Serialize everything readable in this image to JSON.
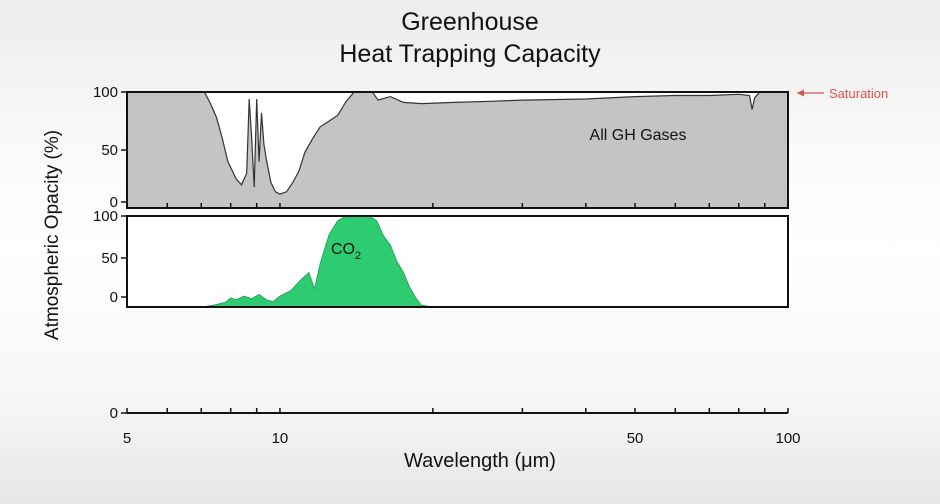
{
  "title_line1": "Greenhouse",
  "title_line2": "Heat Trapping Capacity",
  "chart_data": [
    {
      "type": "area",
      "panel": "top",
      "xlabel": "Wavelength (μm)",
      "ylabel": "Atmospheric Opacity (%)",
      "x_scale": "log",
      "xlim": [
        5,
        100
      ],
      "ylim": [
        0,
        100
      ],
      "y_ticks": [
        "100",
        "50",
        "0"
      ],
      "annotation": "All GH Gases",
      "saturation_label": "Saturation",
      "fill_color": "#c4c4c4",
      "series": [
        {
          "x": [
            5,
            7.1,
            7.3,
            7.5,
            7.7,
            7.9,
            8.2,
            8.4,
            8.6,
            8.7,
            8.8,
            8.9,
            9.0,
            9.1,
            9.2,
            9.3,
            9.4,
            9.6,
            9.8,
            10.0,
            10.3,
            10.6,
            10.9,
            11.2,
            11.6,
            12.0,
            12.5,
            13.0,
            13.5,
            14.0,
            14.4,
            14.8,
            15.2,
            15.6,
            16.5,
            17.5,
            19,
            22,
            26,
            30,
            40,
            50,
            60,
            70,
            80,
            84,
            85,
            86,
            88,
            100
          ],
          "y": [
            100,
            100,
            90,
            78,
            60,
            40,
            25,
            20,
            30,
            94,
            60,
            18,
            94,
            40,
            82,
            55,
            42,
            22,
            14,
            12,
            14,
            22,
            32,
            48,
            60,
            70,
            75,
            80,
            92,
            100,
            100,
            100,
            100,
            93,
            96,
            91,
            90,
            91,
            92,
            93,
            94,
            96,
            97,
            97,
            98,
            97,
            85,
            95,
            100,
            100
          ]
        }
      ]
    },
    {
      "type": "area",
      "panel": "middle",
      "x_scale": "log",
      "xlim": [
        5,
        100
      ],
      "ylim": [
        0,
        100
      ],
      "y_ticks": [
        "100",
        "50",
        "0"
      ],
      "annotation_main": "CO",
      "annotation_sub": "2",
      "fill_color": "#2ecc71",
      "series": [
        {
          "name": "CO2",
          "x": [
            5,
            7.0,
            7.4,
            7.8,
            8.0,
            8.2,
            8.5,
            8.8,
            9.1,
            9.4,
            9.7,
            10.0,
            10.5,
            11.0,
            11.4,
            11.7,
            12.0,
            12.5,
            13.0,
            13.5,
            14.0,
            14.5,
            15.0,
            15.5,
            16.0,
            16.5,
            17.0,
            17.5,
            18.0,
            18.5,
            19.0,
            20,
            30,
            50,
            100
          ],
          "y": [
            0,
            0,
            2,
            5,
            10,
            8,
            12,
            9,
            14,
            8,
            6,
            12,
            18,
            30,
            38,
            20,
            48,
            80,
            95,
            100,
            100,
            100,
            100,
            95,
            78,
            68,
            50,
            38,
            22,
            10,
            2,
            0,
            0,
            0,
            0
          ]
        }
      ]
    },
    {
      "type": "axis",
      "panel": "bottom",
      "xlabel": "Wavelength (μm)",
      "x_scale": "log",
      "xlim": [
        5,
        100
      ],
      "x_ticks": [
        "5",
        "10",
        "50",
        "100"
      ],
      "y_ticks": [
        "0"
      ]
    }
  ]
}
